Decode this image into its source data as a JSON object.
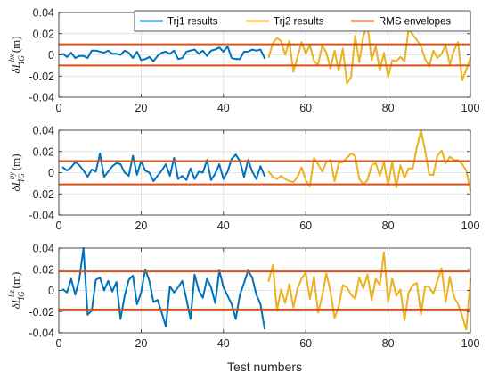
{
  "colors": {
    "trj1": "#0072BD",
    "trj2": "#EDB120",
    "rms": "#D95319",
    "grid": "#dcdcdc",
    "axis": "#262626"
  },
  "legend": {
    "items": [
      {
        "label": "Trj1 results",
        "color": "#0072BD"
      },
      {
        "label": "Trj2 results",
        "color": "#EDB120"
      },
      {
        "label": "RMS envelopes",
        "color": "#D95319"
      }
    ]
  },
  "xlabel": "Test numbers",
  "chart_data": [
    {
      "type": "line",
      "ylabel_main": "δL",
      "ylabel_sup": "bx",
      "ylabel_sub": "IG",
      "ylabel_unit": "(m)",
      "xlim": [
        0,
        100
      ],
      "ylim": [
        -0.04,
        0.04
      ],
      "xticks": [
        "0",
        "20",
        "40",
        "60",
        "80",
        "100"
      ],
      "yticks": [
        "0.04",
        "0.02",
        "0",
        "-0.02",
        "-0.04"
      ],
      "grid": true,
      "rms": 0.01,
      "series": [
        {
          "name": "Trj1 results",
          "x_start": 1,
          "values": [
            0.001,
            -0.002,
            0.002,
            -0.003,
            -0.001,
            -0.001,
            -0.003,
            0.004,
            0.004,
            0.003,
            0.002,
            0.004,
            0.001,
            0.001,
            0.0,
            0.004,
            0.002,
            -0.003,
            0.003,
            -0.005,
            -0.004,
            -0.002,
            -0.006,
            -0.001,
            0.002,
            0.003,
            0.001,
            0.004,
            -0.004,
            -0.003,
            0.003,
            0.004,
            0.005,
            0.001,
            0.004,
            -0.001,
            0.004,
            0.005,
            0.007,
            0.003,
            0.008,
            -0.003,
            -0.004,
            -0.004,
            0.003,
            0.003,
            0.005,
            0.004,
            0.005,
            -0.003
          ]
        },
        {
          "name": "Trj2 results",
          "x_start": 51,
          "values": [
            -0.002,
            0.011,
            0.016,
            0.013,
            0.0,
            0.013,
            -0.016,
            -0.002,
            0.012,
            0.001,
            0.009,
            -0.006,
            -0.009,
            0.009,
            0.002,
            -0.013,
            0.004,
            -0.015,
            0.006,
            -0.027,
            -0.021,
            0.018,
            -0.007,
            0.018,
            0.028,
            -0.005,
            0.008,
            -0.015,
            0.002,
            -0.021,
            -0.005,
            -0.006,
            -0.002,
            -0.006,
            0.025,
            0.019,
            0.014,
            0.008,
            -0.004,
            -0.011,
            0.004,
            -0.003,
            0.001,
            0.009,
            -0.009,
            0.004,
            0.012,
            -0.024,
            -0.014,
            -0.003
          ]
        }
      ]
    },
    {
      "type": "line",
      "ylabel_main": "δL",
      "ylabel_sup": "by",
      "ylabel_sub": "IG",
      "ylabel_unit": "(m)",
      "xlim": [
        0,
        100
      ],
      "ylim": [
        -0.04,
        0.04
      ],
      "xticks": [
        "0",
        "20",
        "40",
        "60",
        "80",
        "100"
      ],
      "yticks": [
        "0.04",
        "0.02",
        "0",
        "-0.02",
        "-0.04"
      ],
      "grid": true,
      "rms": 0.011,
      "series": [
        {
          "name": "Trj1 results",
          "x_start": 1,
          "values": [
            0.005,
            0.002,
            0.005,
            0.01,
            0.007,
            0.002,
            -0.004,
            0.003,
            0.001,
            0.018,
            -0.004,
            0.001,
            0.006,
            0.009,
            0.008,
            0.0,
            -0.003,
            0.016,
            -0.002,
            0.011,
            0.002,
            0.0,
            -0.008,
            -0.003,
            0.002,
            0.008,
            -0.003,
            0.014,
            -0.006,
            -0.003,
            -0.007,
            0.004,
            -0.006,
            0.001,
            0.0,
            0.012,
            -0.007,
            -0.001,
            0.008,
            -0.006,
            0.001,
            0.013,
            0.017,
            0.011,
            -0.004,
            0.012,
            0.001,
            -0.006,
            0.006,
            -0.003
          ]
        },
        {
          "name": "Trj2 results",
          "x_start": 51,
          "values": [
            0.001,
            -0.004,
            -0.006,
            -0.003,
            -0.006,
            -0.008,
            -0.009,
            -0.004,
            0.005,
            -0.007,
            -0.013,
            0.014,
            0.008,
            0.001,
            0.01,
            0.012,
            -0.008,
            0.009,
            0.01,
            0.014,
            0.018,
            0.016,
            -0.006,
            -0.011,
            -0.007,
            0.007,
            0.009,
            -0.003,
            0.01,
            -0.012,
            0.01,
            -0.014,
            0.007,
            -0.005,
            0.004,
            0.004,
            0.024,
            0.044,
            0.021,
            -0.002,
            -0.002,
            0.016,
            0.021,
            0.009,
            0.015,
            0.012,
            0.012,
            0.008,
            0.002,
            -0.017
          ]
        }
      ]
    },
    {
      "type": "line",
      "ylabel_main": "δL",
      "ylabel_sup": "bz",
      "ylabel_sub": "IG",
      "ylabel_unit": "(m)",
      "xlim": [
        0,
        100
      ],
      "ylim": [
        -0.04,
        0.04
      ],
      "xticks": [
        "0",
        "20",
        "40",
        "60",
        "80",
        "100"
      ],
      "yticks": [
        "0.04",
        "0.02",
        "0",
        "-0.02",
        "-0.04"
      ],
      "grid": true,
      "rms": 0.018,
      "series": [
        {
          "name": "Trj1 results",
          "x_start": 1,
          "values": [
            0.001,
            -0.002,
            0.011,
            -0.004,
            0.011,
            0.044,
            -0.023,
            -0.019,
            0.01,
            0.012,
            0.0,
            0.009,
            -0.001,
            0.008,
            -0.027,
            -0.005,
            0.01,
            0.014,
            -0.013,
            -0.002,
            0.02,
            0.009,
            -0.011,
            -0.009,
            -0.021,
            -0.034,
            0.004,
            -0.002,
            0.003,
            0.009,
            -0.008,
            -0.027,
            0.015,
            0.0,
            -0.007,
            0.011,
            0.003,
            -0.012,
            0.019,
            0.003,
            -0.005,
            -0.013,
            -0.027,
            -0.004,
            0.007,
            0.019,
            0.012,
            -0.004,
            -0.013,
            -0.036
          ]
        },
        {
          "name": "Trj2 results",
          "x_start": 51,
          "values": [
            0.009,
            0.024,
            -0.019,
            0.001,
            -0.012,
            0.006,
            -0.016,
            0.002,
            0.011,
            0.017,
            -0.008,
            0.013,
            -0.021,
            -0.005,
            0.016,
            -0.001,
            -0.026,
            -0.015,
            0.005,
            0.003,
            -0.004,
            -0.008,
            0.012,
            0.002,
            0.015,
            -0.009,
            0.011,
            0.005,
            0.036,
            -0.011,
            0.011,
            -0.005,
            0.001,
            -0.028,
            -0.002,
            0.005,
            0.007,
            -0.023,
            0.004,
            0.003,
            -0.003,
            0.009,
            0.021,
            -0.011,
            0.013,
            -0.006,
            -0.013,
            -0.024,
            -0.037,
            0.011
          ]
        }
      ]
    }
  ]
}
